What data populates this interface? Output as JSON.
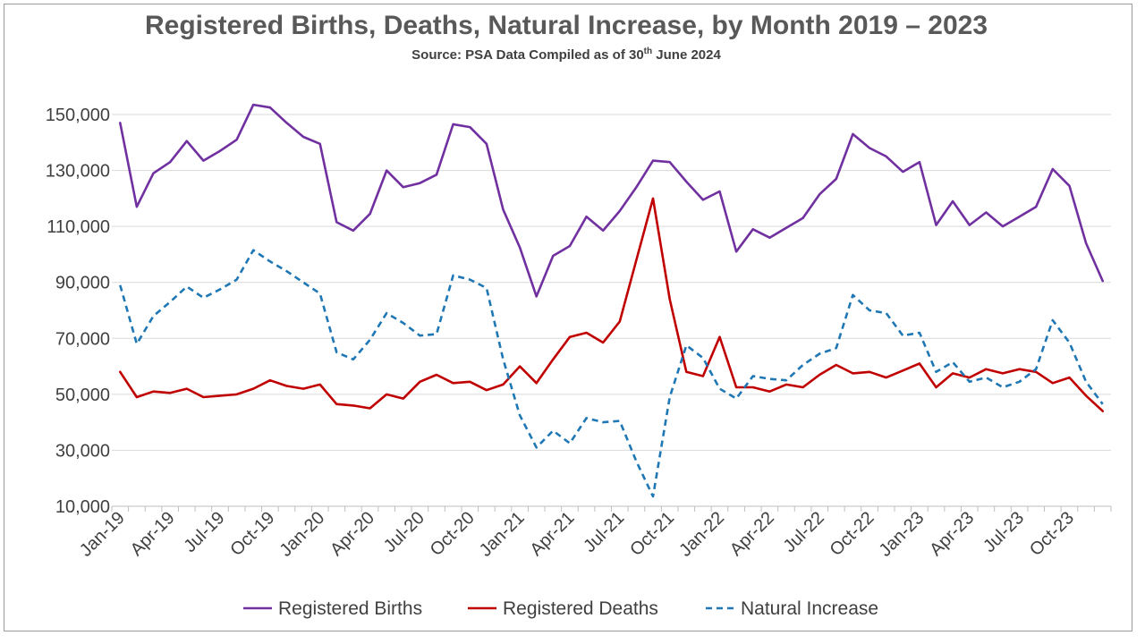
{
  "chart_data": {
    "type": "line",
    "title": "Registered Births, Deaths, Natural Increase, by Month 2019 – 2023",
    "subtitle_prefix": "Source: PSA Data Compiled as of 30",
    "subtitle_sup": "th",
    "subtitle_suffix": " June 2024",
    "ylim": [
      10000,
      160000
    ],
    "yticks": [
      10000,
      30000,
      50000,
      70000,
      90000,
      110000,
      130000,
      150000
    ],
    "ytick_labels": [
      "10,000",
      "30,000",
      "50,000",
      "70,000",
      "90,000",
      "110,000",
      "130,000",
      "150,000"
    ],
    "xtick_labels": [
      "Jan-19",
      "Apr-19",
      "Jul-19",
      "Oct-19",
      "Jan-20",
      "Apr-20",
      "Jul-20",
      "Oct-20",
      "Jan-21",
      "Apr-21",
      "Jul-21",
      "Oct-21",
      "Jan-22",
      "Apr-22",
      "Jul-22",
      "Oct-22",
      "Jan-23",
      "Apr-23",
      "Jul-23",
      "Oct-23"
    ],
    "grid": "horizontal",
    "legend_position": "bottom",
    "x": [
      "Jan-19",
      "Feb-19",
      "Mar-19",
      "Apr-19",
      "May-19",
      "Jun-19",
      "Jul-19",
      "Aug-19",
      "Sep-19",
      "Oct-19",
      "Nov-19",
      "Dec-19",
      "Jan-20",
      "Feb-20",
      "Mar-20",
      "Apr-20",
      "May-20",
      "Jun-20",
      "Jul-20",
      "Aug-20",
      "Sep-20",
      "Oct-20",
      "Nov-20",
      "Dec-20",
      "Jan-21",
      "Feb-21",
      "Mar-21",
      "Apr-21",
      "May-21",
      "Jun-21",
      "Jul-21",
      "Aug-21",
      "Sep-21",
      "Oct-21",
      "Nov-21",
      "Dec-21",
      "Jan-22",
      "Feb-22",
      "Mar-22",
      "Apr-22",
      "May-22",
      "Jun-22",
      "Jul-22",
      "Aug-22",
      "Sep-22",
      "Oct-22",
      "Nov-22",
      "Dec-22",
      "Jan-23",
      "Feb-23",
      "Mar-23",
      "Apr-23",
      "May-23",
      "Jun-23",
      "Jul-23",
      "Aug-23",
      "Sep-23",
      "Oct-23",
      "Nov-23",
      "Dec-23"
    ],
    "series": [
      {
        "name": "Registered Births",
        "color": "#7030a0",
        "dash": "solid",
        "values": [
          147000,
          117000,
          129000,
          133000,
          140500,
          133500,
          137000,
          141000,
          153500,
          152500,
          147000,
          142000,
          139500,
          111500,
          108500,
          114500,
          130000,
          124000,
          125500,
          128500,
          146500,
          145500,
          139500,
          116000,
          102500,
          85000,
          99500,
          103000,
          113500,
          108500,
          115500,
          124000,
          133500,
          133000,
          126000,
          119500,
          122500,
          101000,
          109000,
          106000,
          109500,
          113000,
          121500,
          127000,
          143000,
          138000,
          135000,
          129500,
          133000,
          110500,
          119000,
          110500,
          115000,
          110000,
          113500,
          117000,
          130500,
          124500,
          104000,
          90500
        ]
      },
      {
        "name": "Registered Deaths",
        "color": "#c00000",
        "dash": "solid",
        "values": [
          58000,
          49000,
          51000,
          50500,
          52000,
          49000,
          49500,
          50000,
          52000,
          55000,
          53000,
          52000,
          53500,
          46500,
          46000,
          45000,
          50000,
          48500,
          54500,
          57000,
          54000,
          54500,
          51500,
          53500,
          60000,
          54000,
          62500,
          70500,
          72000,
          68500,
          76000,
          98000,
          120000,
          84000,
          58000,
          56500,
          70500,
          52500,
          52500,
          51000,
          53500,
          52500,
          57000,
          60500,
          57500,
          58000,
          56000,
          58500,
          61000,
          52500,
          57500,
          56000,
          59000,
          57500,
          59000,
          58000,
          54000,
          56000,
          49500,
          44000
        ]
      },
      {
        "name": "Natural Increase",
        "color": "#1f77b4",
        "dash": "dashed",
        "values": [
          89000,
          68000,
          78000,
          83000,
          88500,
          84500,
          87500,
          91000,
          101500,
          97500,
          94000,
          90000,
          86000,
          65000,
          62500,
          69500,
          79000,
          75500,
          71000,
          71500,
          92500,
          91000,
          88000,
          62500,
          42500,
          31000,
          37000,
          32500,
          41500,
          40000,
          40500,
          26000,
          13500,
          49000,
          67500,
          63000,
          52000,
          48500,
          56500,
          55500,
          55000,
          60500,
          64500,
          66500,
          85500,
          80000,
          79000,
          71000,
          72000,
          58000,
          61500,
          54500,
          56000,
          52500,
          54500,
          59000,
          76500,
          68500,
          54500,
          46500
        ]
      }
    ]
  }
}
